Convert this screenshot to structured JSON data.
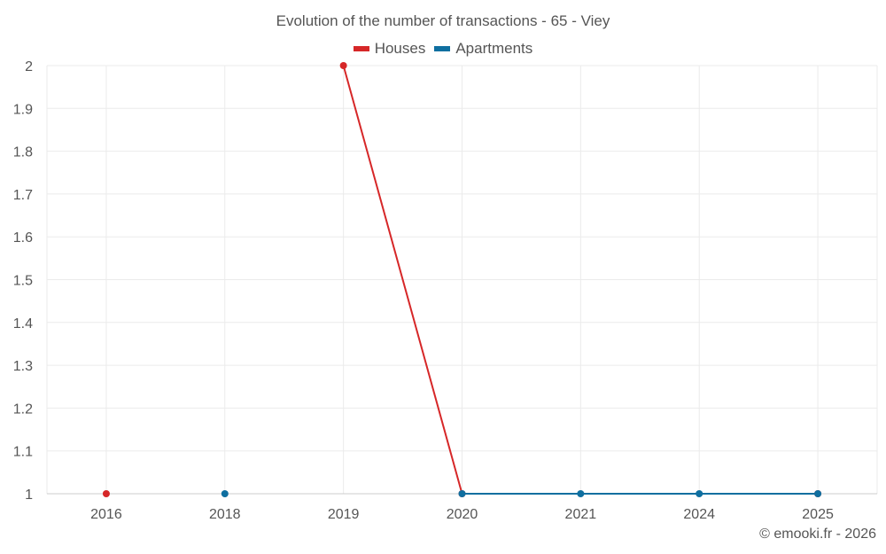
{
  "chart_data": {
    "type": "line",
    "title": "Evolution of the number of transactions - 65 - Viey",
    "categories": [
      "2016",
      "2018",
      "2019",
      "2020",
      "2021",
      "2024",
      "2025"
    ],
    "yticks": [
      "1",
      "1.1",
      "1.2",
      "1.3",
      "1.4",
      "1.5",
      "1.6",
      "1.7",
      "1.8",
      "1.9",
      "2"
    ],
    "ylim": [
      1,
      2
    ],
    "series": [
      {
        "name": "Houses",
        "color": "#d62728",
        "values": [
          1,
          null,
          2,
          1,
          null,
          null,
          1
        ]
      },
      {
        "name": "Apartments",
        "color": "#0f6fa0",
        "values": [
          null,
          1,
          null,
          1,
          1,
          1,
          1
        ]
      }
    ],
    "legend_position": "top-center",
    "grid": true
  },
  "credit": "© emooki.fr - 2026"
}
